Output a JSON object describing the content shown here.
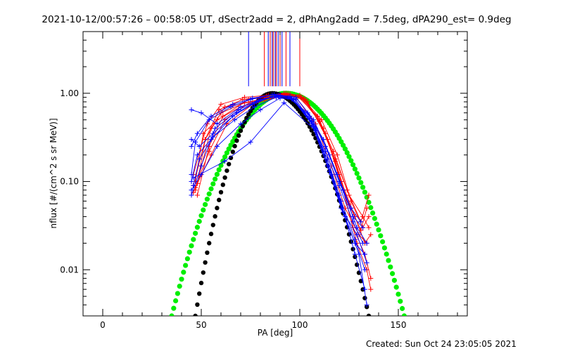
{
  "chart_data": {
    "type": "scatter",
    "title": "2021-10-12/00:57:26 – 00:58:05 UT, dSectr2add = 2, dPhAng2add = 7.5deg, dPA290_est=  0.9deg",
    "xlabel": "PA [deg]",
    "ylabel": "nflux [#/(cm^2 s sr MeV)]",
    "footer": "Created: Sun Oct 24 23:05:05 2021",
    "xlim": [
      -10,
      185
    ],
    "ylim": [
      0.003,
      5
    ],
    "yscale": "log",
    "grid": false,
    "x_ticks": [
      0,
      50,
      100,
      150
    ],
    "x_tick_labels": [
      "0",
      "50",
      "100",
      "150"
    ],
    "y_ticks": [
      0.01,
      0.1,
      1.0
    ],
    "y_tick_labels": [
      "0.01",
      "0.10",
      "1.00"
    ],
    "colors": {
      "red": "#ff0000",
      "blue": "#0000ff",
      "green": "#00ee00",
      "black": "#000000"
    },
    "vertical_markers": {
      "x": [
        74,
        82,
        84,
        85,
        86,
        86.5,
        87.5,
        88,
        89,
        90,
        91,
        93,
        95,
        100
      ],
      "colors": [
        "#0000ff",
        "#ff0000",
        "#0000ff",
        "#ff0000",
        "#0000ff",
        "#ff0000",
        "#0000ff",
        "#ff0000",
        "#0000ff",
        "#ff0000",
        "#0000ff",
        "#ff0000",
        "#0000ff",
        "#ff0000"
      ],
      "ymin": 1.2
    },
    "model_curves": [
      {
        "color": "#00ee00",
        "peak_x": 93,
        "peak_y": 1.0,
        "left_zero_x": 35,
        "right_zero_x": 153
      },
      {
        "color": "#000000",
        "peak_x": 86,
        "peak_y": 1.0,
        "left_zero_x": 47,
        "right_zero_x": 135
      }
    ],
    "series": [
      {
        "color": "#ff0000",
        "x": [
          47,
          55,
          62,
          75,
          85,
          92,
          100,
          110,
          118,
          125,
          132,
          135
        ],
        "y": [
          0.08,
          0.4,
          0.7,
          0.8,
          0.9,
          1.0,
          0.95,
          0.5,
          0.18,
          0.07,
          0.04,
          0.03
        ]
      },
      {
        "color": "#ff0000",
        "x": [
          46,
          52,
          60,
          72,
          83,
          92,
          98,
          108,
          116,
          123,
          130,
          134
        ],
        "y": [
          0.09,
          0.3,
          0.6,
          0.78,
          0.88,
          0.98,
          0.9,
          0.45,
          0.15,
          0.05,
          0.025,
          0.02
        ]
      },
      {
        "color": "#ff0000",
        "x": [
          47,
          51,
          58,
          70,
          82,
          91,
          99,
          109,
          117,
          124,
          131,
          135
        ],
        "y": [
          0.1,
          0.35,
          0.5,
          0.7,
          0.85,
          0.95,
          0.92,
          0.55,
          0.22,
          0.08,
          0.035,
          0.07
        ]
      },
      {
        "color": "#ff0000",
        "x": [
          48,
          54,
          61,
          74,
          86,
          94,
          102,
          112,
          120,
          127,
          133,
          136
        ],
        "y": [
          0.07,
          0.25,
          0.55,
          0.85,
          0.92,
          0.99,
          0.88,
          0.4,
          0.12,
          0.03,
          0.015,
          0.008
        ]
      },
      {
        "color": "#ff0000",
        "x": [
          46,
          53,
          60,
          72,
          84,
          93,
          101,
          111,
          119,
          126,
          132,
          135
        ],
        "y": [
          0.12,
          0.45,
          0.75,
          0.9,
          0.95,
          1.0,
          0.9,
          0.5,
          0.2,
          0.06,
          0.03,
          0.04
        ]
      },
      {
        "color": "#ff0000",
        "x": [
          47,
          55,
          63,
          76,
          88,
          95,
          103,
          113,
          121,
          128,
          133,
          136
        ],
        "y": [
          0.085,
          0.2,
          0.45,
          0.75,
          0.9,
          0.97,
          0.85,
          0.35,
          0.1,
          0.04,
          0.02,
          0.025
        ]
      },
      {
        "color": "#ff0000",
        "x": [
          48,
          52,
          59,
          71,
          83,
          92,
          100,
          110,
          118,
          125,
          131,
          134
        ],
        "y": [
          0.095,
          0.3,
          0.65,
          0.85,
          0.93,
          0.99,
          0.92,
          0.48,
          0.17,
          0.055,
          0.028,
          0.05
        ]
      },
      {
        "color": "#ff0000",
        "x": [
          46,
          54,
          62,
          75,
          87,
          95,
          104,
          114,
          122,
          129,
          134,
          136
        ],
        "y": [
          0.075,
          0.22,
          0.5,
          0.8,
          0.92,
          0.98,
          0.8,
          0.3,
          0.08,
          0.02,
          0.01,
          0.006
        ]
      },
      {
        "color": "#0000ff",
        "x": [
          45,
          50,
          58,
          70,
          80,
          90,
          98,
          107,
          115,
          122,
          129,
          134
        ],
        "y": [
          0.65,
          0.6,
          0.45,
          0.7,
          0.85,
          0.95,
          0.9,
          0.5,
          0.2,
          0.08,
          0.03,
          0.02
        ]
      },
      {
        "color": "#0000ff",
        "x": [
          45,
          49,
          56,
          68,
          78,
          88,
          96,
          106,
          114,
          121,
          128,
          133
        ],
        "y": [
          0.3,
          0.25,
          0.35,
          0.6,
          0.8,
          0.93,
          0.88,
          0.45,
          0.15,
          0.05,
          0.02,
          0.015
        ]
      },
      {
        "color": "#0000ff",
        "x": [
          45,
          48,
          55,
          66,
          76,
          86,
          95,
          105,
          113,
          120,
          127,
          132
        ],
        "y": [
          0.1,
          0.2,
          0.3,
          0.55,
          0.75,
          0.92,
          0.9,
          0.55,
          0.25,
          0.1,
          0.04,
          0.03
        ]
      },
      {
        "color": "#0000ff",
        "x": [
          45,
          50,
          57,
          69,
          79,
          89,
          97,
          107,
          115,
          122,
          129,
          134
        ],
        "y": [
          0.07,
          0.15,
          0.4,
          0.65,
          0.82,
          0.95,
          0.87,
          0.42,
          0.13,
          0.045,
          0.025,
          0.012
        ]
      },
      {
        "color": "#0000ff",
        "x": [
          45,
          47,
          54,
          65,
          75,
          86,
          94,
          104,
          112,
          119,
          126,
          131
        ],
        "y": [
          0.12,
          0.28,
          0.5,
          0.7,
          0.85,
          0.96,
          0.9,
          0.6,
          0.3,
          0.12,
          0.05,
          0.035
        ]
      },
      {
        "color": "#0000ff",
        "x": [
          46,
          49,
          56,
          67,
          77,
          88,
          96,
          106,
          114,
          121,
          128,
          133
        ],
        "y": [
          0.09,
          0.18,
          0.32,
          0.5,
          0.7,
          0.9,
          0.86,
          0.48,
          0.18,
          0.06,
          0.022,
          0.01
        ]
      },
      {
        "color": "#0000ff",
        "x": [
          45,
          50,
          58,
          70,
          80,
          90,
          98,
          108,
          116,
          123,
          130,
          134
        ],
        "y": [
          0.08,
          0.12,
          0.25,
          0.45,
          0.65,
          0.88,
          0.85,
          0.4,
          0.12,
          0.04,
          0.015,
          0.004
        ]
      },
      {
        "color": "#0000ff",
        "x": [
          45,
          48,
          55,
          66,
          76,
          87,
          95,
          105,
          113,
          120,
          127,
          132
        ],
        "y": [
          0.25,
          0.35,
          0.55,
          0.75,
          0.88,
          0.97,
          0.92,
          0.52,
          0.22,
          0.09,
          0.035,
          0.02
        ]
      },
      {
        "color": "#0000ff",
        "x": [
          46,
          62,
          75,
          92,
          108,
          120,
          128,
          133
        ],
        "y": [
          0.11,
          0.17,
          0.28,
          0.78,
          0.38,
          0.07,
          0.015,
          0.006
        ]
      }
    ]
  }
}
